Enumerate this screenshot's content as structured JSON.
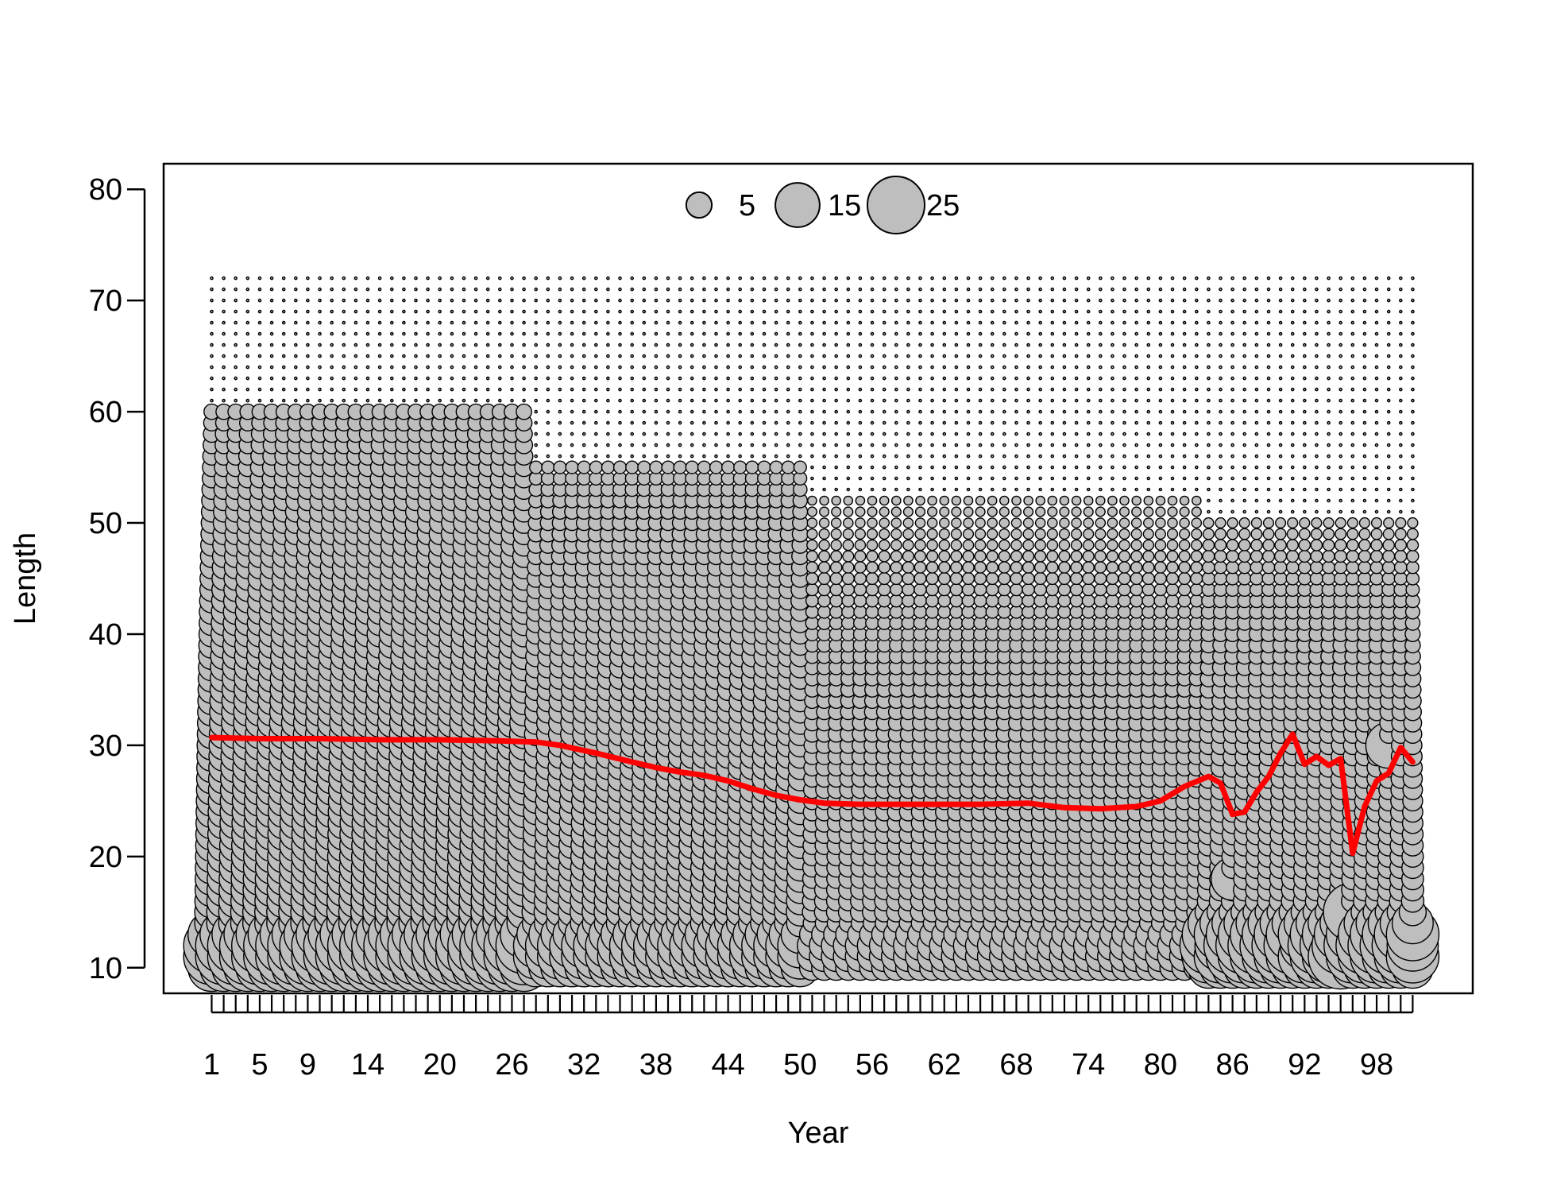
{
  "chart_data": {
    "type": "scatter",
    "title": "",
    "xlabel": "Year",
    "ylabel": "Length",
    "x_range": [
      1,
      101
    ],
    "xlim": [
      -3,
      106
    ],
    "ylim": [
      7.7,
      82.3
    ],
    "x_tick_labels": [
      1,
      5,
      9,
      14,
      20,
      26,
      32,
      38,
      44,
      50,
      56,
      62,
      68,
      74,
      80,
      86,
      92,
      98
    ],
    "y_ticks": [
      10,
      20,
      30,
      40,
      50,
      60,
      70,
      80
    ],
    "length_bins": {
      "start": 10,
      "end": 72,
      "step": 1
    },
    "grid": false,
    "legend": {
      "position": "top",
      "entries": [
        {
          "label": "5",
          "value": 5
        },
        {
          "label": "15",
          "value": 15
        },
        {
          "label": "25",
          "value": 25
        }
      ]
    },
    "colors": {
      "bubble_fill": "#bebebe",
      "bubble_stroke": "#000000",
      "mean_line": "#ff0000"
    },
    "series": [
      {
        "kind": "mean_length_line",
        "x": [
          1,
          5,
          10,
          15,
          20,
          25,
          28,
          30,
          33,
          36,
          38,
          40,
          42,
          44,
          46,
          48,
          50,
          52,
          55,
          60,
          65,
          69,
          72,
          75,
          78,
          80,
          82,
          84,
          85,
          86,
          87,
          88,
          89,
          90,
          91,
          92,
          93,
          94,
          95,
          96,
          97,
          98,
          99,
          100,
          101
        ],
        "y": [
          30.7,
          30.6,
          30.6,
          30.5,
          30.5,
          30.4,
          30.3,
          30.0,
          29.3,
          28.5,
          28.0,
          27.6,
          27.3,
          26.8,
          26.1,
          25.5,
          25.1,
          24.8,
          24.7,
          24.7,
          24.7,
          24.8,
          24.4,
          24.3,
          24.5,
          25.0,
          26.3,
          27.2,
          26.6,
          23.8,
          24.0,
          25.8,
          27.2,
          29.3,
          31.0,
          28.3,
          29.0,
          28.2,
          28.8,
          20.3,
          24.5,
          26.8,
          27.5,
          29.8,
          28.5
        ]
      }
    ],
    "bubble_size_model": {
      "description": "bubble radius scales with sqrt of value; values shown per year/length bin",
      "year_profiles": [
        {
          "years": [
            1,
            27
          ],
          "peak_length": 11.5,
          "peak_value": 25,
          "mid_value": 9,
          "tail_end_length": 60
        },
        {
          "years": [
            28,
            50
          ],
          "peak_length": 11.5,
          "peak_value": 16,
          "mid_value": 6,
          "tail_end_length": 55
        },
        {
          "years": [
            51,
            83
          ],
          "peak_length": 11.5,
          "peak_value": 7,
          "mid_value": 3,
          "tail_end_length": 52
        },
        {
          "years": [
            84,
            101
          ],
          "peak_length": 12,
          "peak_value": 25,
          "mid_value": 4,
          "tail_end_length": 50
        }
      ],
      "highlights": [
        {
          "year": 85,
          "length": 12,
          "value": 20
        },
        {
          "year": 86,
          "length": 18,
          "value": 14
        },
        {
          "year": 92,
          "length": 12,
          "value": 18
        },
        {
          "year": 95,
          "length": 11,
          "value": 32
        },
        {
          "year": 96,
          "length": 15,
          "value": 26
        },
        {
          "year": 99,
          "length": 30,
          "value": 16
        },
        {
          "year": 101,
          "length": 12,
          "value": 20
        }
      ]
    }
  }
}
